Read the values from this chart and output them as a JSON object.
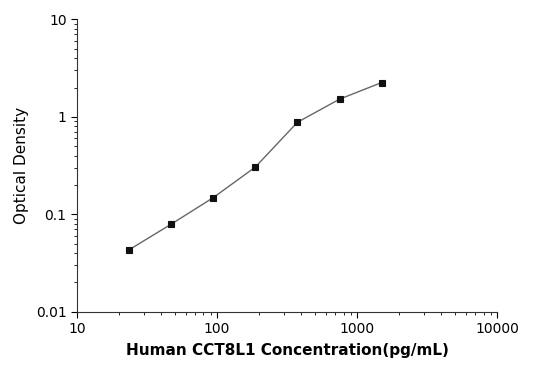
{
  "x": [
    23.4,
    46.9,
    93.8,
    187.5,
    375,
    750,
    1500
  ],
  "y": [
    0.043,
    0.079,
    0.148,
    0.305,
    0.88,
    1.52,
    2.25
  ],
  "xlim": [
    10,
    10000
  ],
  "ylim": [
    0.01,
    10
  ],
  "xlabel": "Human CCT8L1 Concentration(pg/mL)",
  "ylabel": "Optical Density",
  "line_color": "#666666",
  "marker": "s",
  "marker_color": "#111111",
  "marker_size": 5,
  "linewidth": 1.0,
  "background_color": "#ffffff",
  "xticks": [
    10,
    100,
    1000,
    10000
  ],
  "xtick_labels": [
    "10",
    "100",
    "1000",
    "10000"
  ],
  "yticks": [
    0.01,
    0.1,
    1,
    10
  ],
  "ytick_labels": [
    "0.01",
    "0.1",
    "1",
    "10"
  ],
  "xlabel_fontsize": 11,
  "ylabel_fontsize": 11,
  "tick_fontsize": 10
}
